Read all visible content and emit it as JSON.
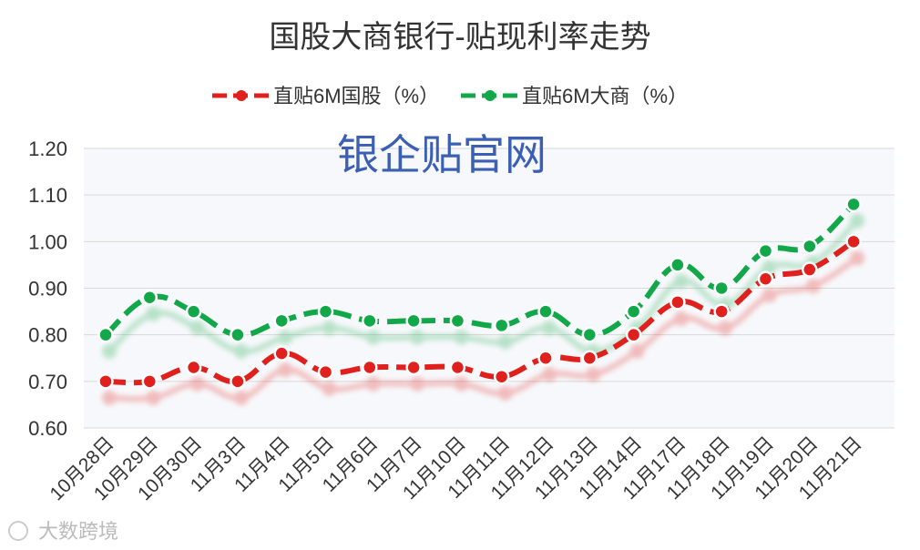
{
  "chart_data": {
    "type": "line",
    "title": "国股大商银行-贴现利率走势",
    "categories": [
      "10月28日",
      "10月29日",
      "10月30日",
      "11月3日",
      "11月4日",
      "11月5日",
      "11月6日",
      "11月7日",
      "11月10日",
      "11月11日",
      "11月12日",
      "11月13日",
      "11月14日",
      "11月17日",
      "11月18日",
      "11月19日",
      "11月20日",
      "11月21日"
    ],
    "series": [
      {
        "name": "直贴6M国股（%）",
        "color": "#e0201c",
        "values": [
          0.7,
          0.7,
          0.73,
          0.7,
          0.76,
          0.72,
          0.73,
          0.73,
          0.73,
          0.71,
          0.75,
          0.75,
          0.8,
          0.87,
          0.85,
          0.92,
          0.94,
          1.0
        ]
      },
      {
        "name": "直贴6M大商（%）",
        "color": "#12a84a",
        "values": [
          0.8,
          0.88,
          0.85,
          0.8,
          0.83,
          0.85,
          0.83,
          0.83,
          0.83,
          0.82,
          0.85,
          0.8,
          0.85,
          0.95,
          0.9,
          0.98,
          0.99,
          1.08
        ]
      }
    ],
    "yticks": [
      "0.60",
      "0.70",
      "0.80",
      "0.90",
      "1.00",
      "1.10",
      "1.20"
    ],
    "ylim": [
      0.6,
      1.2
    ],
    "grid": true,
    "legend_position": "top-center"
  },
  "watermark": "银企贴官网",
  "brand": "大数跨境"
}
